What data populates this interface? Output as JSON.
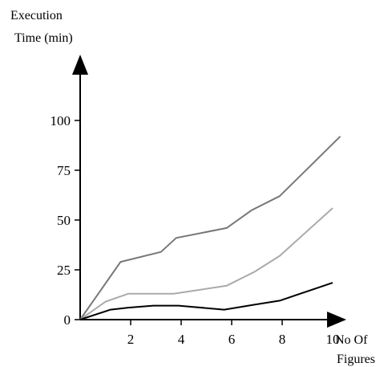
{
  "chart_data": {
    "type": "line",
    "ylabel_lines": [
      "Execution",
      "Time (min)"
    ],
    "xlabel_lines": [
      "No Of",
      "Figures"
    ],
    "xlim": [
      0,
      10.4
    ],
    "ylim": [
      0,
      100
    ],
    "xticks": [
      2,
      4,
      6,
      8,
      10
    ],
    "yticks": [
      0,
      25,
      50,
      75,
      100
    ],
    "grid": false,
    "series": [
      {
        "color": "#777777",
        "points": [
          [
            0,
            0
          ],
          [
            1.6,
            29
          ],
          [
            3.2,
            34
          ],
          [
            3.8,
            41
          ],
          [
            5.8,
            46
          ],
          [
            6.8,
            55
          ],
          [
            7.9,
            62
          ],
          [
            10.3,
            92
          ]
        ]
      },
      {
        "color": "#aaaaaa",
        "points": [
          [
            0,
            0
          ],
          [
            1.0,
            9
          ],
          [
            1.9,
            13
          ],
          [
            3.7,
            13
          ],
          [
            5.8,
            17
          ],
          [
            6.9,
            24
          ],
          [
            7.9,
            32
          ],
          [
            10.0,
            56
          ]
        ]
      },
      {
        "color": "#000000",
        "points": [
          [
            0,
            0
          ],
          [
            1.2,
            5
          ],
          [
            1.9,
            6
          ],
          [
            2.9,
            7
          ],
          [
            3.9,
            7
          ],
          [
            5.7,
            5
          ],
          [
            6.9,
            7.5
          ],
          [
            7.9,
            9.5
          ],
          [
            10.0,
            18.5
          ]
        ]
      }
    ]
  }
}
